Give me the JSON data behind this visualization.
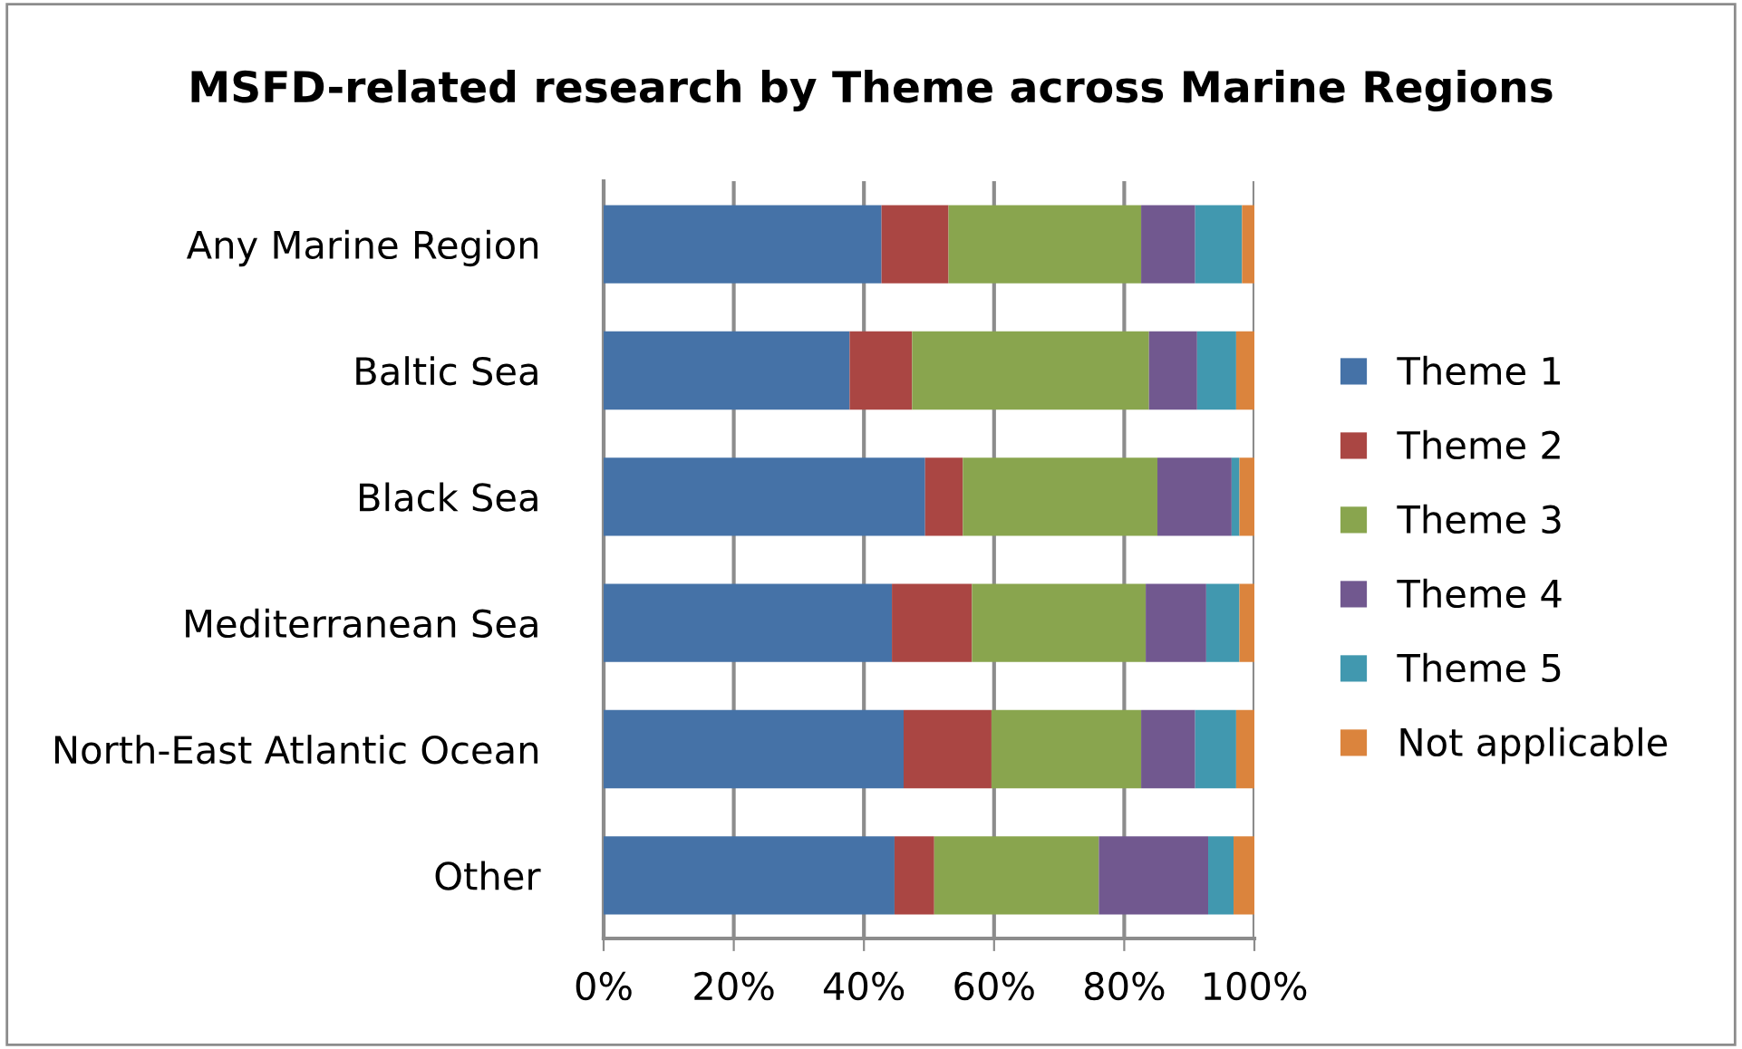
{
  "chart_data": {
    "type": "bar",
    "orientation": "horizontal",
    "stacked": true,
    "title": "MSFD-related research by Theme across Marine Regions",
    "categories": [
      "Any Marine Region",
      "Baltic Sea",
      "Black Sea",
      "Mediterranean Sea",
      "North-East Atlantic Ocean",
      "Other"
    ],
    "series": [
      {
        "name": "Theme 1",
        "color": "#4572a7",
        "values": [
          42.7,
          37.8,
          49.4,
          44.3,
          46.1,
          44.7
        ]
      },
      {
        "name": "Theme 2",
        "color": "#aa4643",
        "values": [
          10.3,
          9.6,
          5.8,
          12.3,
          13.5,
          6.1
        ]
      },
      {
        "name": "Theme 3",
        "color": "#89a54e",
        "values": [
          29.6,
          36.4,
          29.9,
          26.7,
          23.0,
          25.3
        ]
      },
      {
        "name": "Theme 4",
        "color": "#71588f",
        "values": [
          8.3,
          7.4,
          11.4,
          9.3,
          8.3,
          16.8
        ]
      },
      {
        "name": "Theme 5",
        "color": "#4198af",
        "values": [
          7.2,
          6.0,
          1.2,
          5.1,
          6.3,
          3.9
        ]
      },
      {
        "name": "Not applicable",
        "color": "#db843d",
        "values": [
          1.9,
          2.8,
          2.3,
          2.3,
          2.8,
          3.2
        ]
      }
    ],
    "xlim": [
      0,
      100
    ],
    "xticks": [
      {
        "value": 0,
        "label": "0%"
      },
      {
        "value": 20,
        "label": "20%"
      },
      {
        "value": 40,
        "label": "40%"
      },
      {
        "value": 60,
        "label": "60%"
      },
      {
        "value": 80,
        "label": "80%"
      },
      {
        "value": 100,
        "label": "100%"
      }
    ],
    "grid": "x",
    "legend": "right"
  }
}
